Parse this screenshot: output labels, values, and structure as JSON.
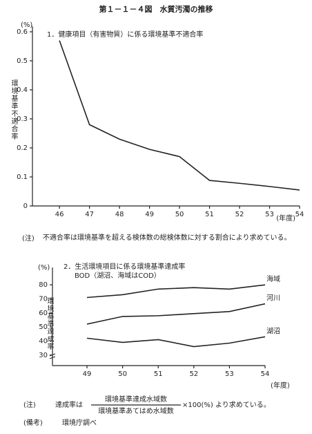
{
  "figure_title": "第１－１－４図　水質汚濁の推移",
  "note1": {
    "label": "(注)",
    "text": "不適合率は環境基準を超える検体数の総検体数に対する割合により求めている。"
  },
  "note2": {
    "label": "(注)",
    "lead": "達成率は",
    "numerator": "環境基準達成水域数",
    "denominator": "環境基準あてはめ水域数",
    "tail": "×100(%) より求めている。"
  },
  "note3": {
    "label": "(備考)",
    "text": "環境庁調べ"
  },
  "chart_data": [
    {
      "type": "line",
      "title": "1．健康項目（有害物質）に係る環境基準不適合率",
      "y_unit": "(%)",
      "y_label": "環境基準不適合率",
      "x_unit": "(年度)",
      "x": [
        46,
        47,
        48,
        49,
        50,
        51,
        52,
        53,
        54
      ],
      "series": [
        {
          "name": null,
          "color": "#222222",
          "values": [
            0.57,
            0.28,
            0.23,
            0.195,
            0.17,
            0.088,
            0.078,
            0.067,
            0.055
          ]
        }
      ],
      "xlim": [
        45.1,
        54
      ],
      "xticks": [
        46,
        47,
        48,
        49,
        50,
        51,
        52,
        53,
        54
      ],
      "ylim": [
        0,
        0.6
      ],
      "yticks": [
        0,
        0.1,
        0.2,
        0.3,
        0.4,
        0.5,
        0.6
      ]
    },
    {
      "type": "line",
      "title": "2．生活環境項目に係る環境基準達成率",
      "subtitle": "BOD（湖沼、海域はCOD）",
      "y_unit": "(%)",
      "y_label": "環境基準達成率",
      "x_unit": "(年度)",
      "x": [
        49,
        50,
        51,
        52,
        53,
        54
      ],
      "series": [
        {
          "name": "海域",
          "color": "#222222",
          "values": [
            71,
            73,
            77,
            78,
            77,
            80
          ]
        },
        {
          "name": "河川",
          "color": "#222222",
          "values": [
            52,
            57.5,
            58,
            59.5,
            61,
            66.5
          ]
        },
        {
          "name": "湖沼",
          "color": "#222222",
          "values": [
            42,
            39,
            41,
            36,
            38.5,
            43
          ]
        }
      ],
      "xlim": [
        48.03,
        54
      ],
      "xticks": [
        49,
        50,
        51,
        52,
        53,
        54
      ],
      "ylim": [
        22.5,
        85.5
      ],
      "yticks": [
        30,
        40,
        50,
        60,
        70,
        80
      ]
    }
  ]
}
